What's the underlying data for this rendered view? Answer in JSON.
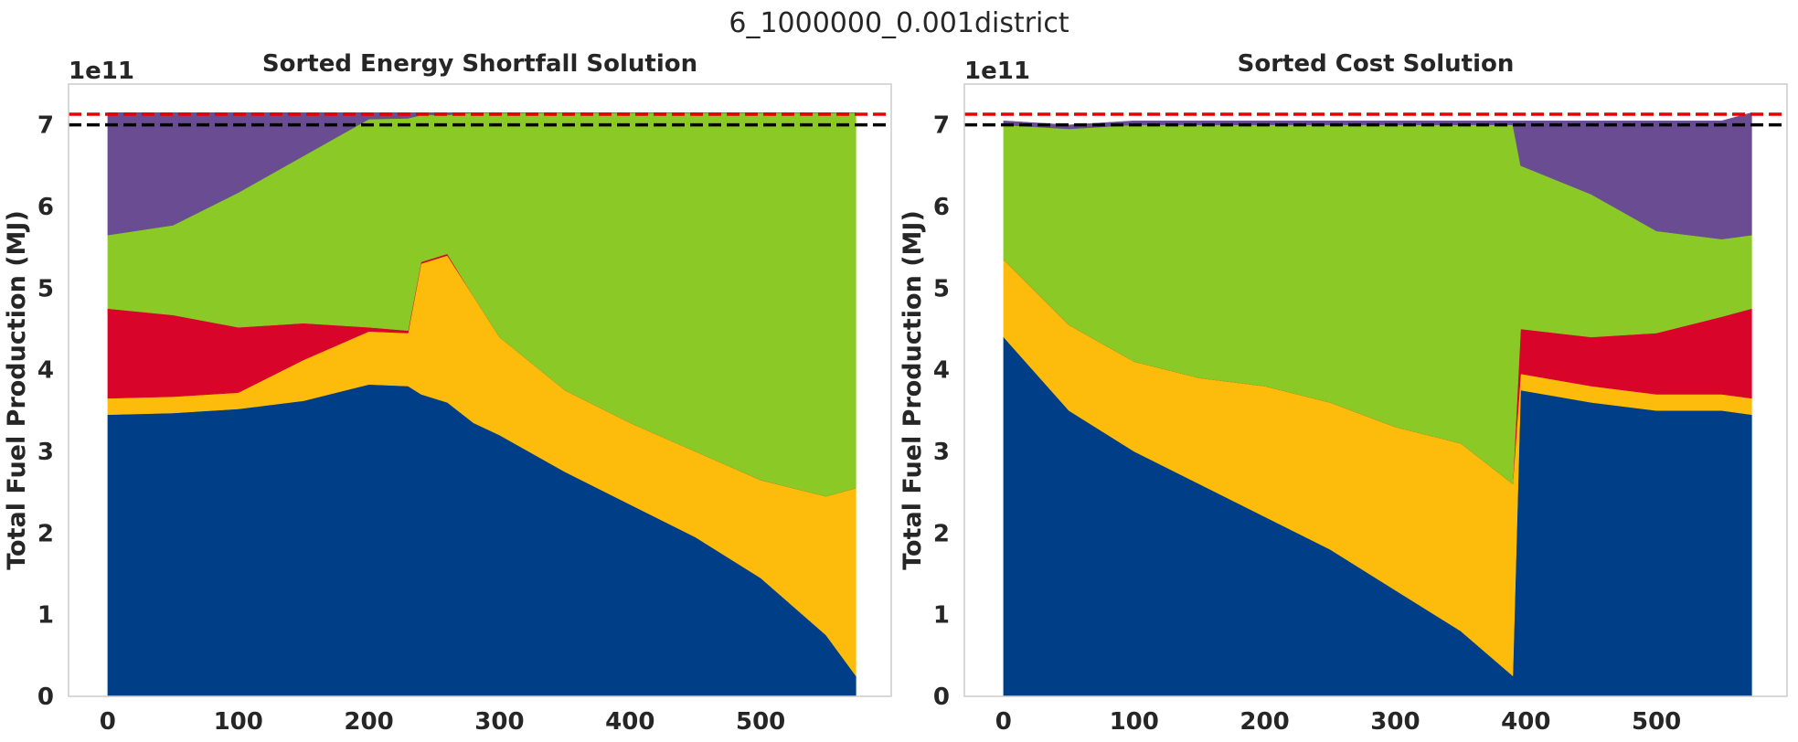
{
  "figure": {
    "suptitle": "6_1000000_0.001district"
  },
  "colors": {
    "navy": "#003f88",
    "gold": "#fdbc0c",
    "crimson": "#d90429",
    "green": "#8ac926",
    "purple": "#6a4c93",
    "ref_red": "#e60000",
    "ref_black": "#000000"
  },
  "chart_data": [
    {
      "type": "area",
      "title": "Sorted Energy Shortfall Solution",
      "ylabel": "Total Fuel Production (MJ)",
      "y_offset_text": "1e11",
      "xlim": [
        -30,
        600
      ],
      "ylim": [
        0,
        7.5
      ],
      "y_unit_scale": "1e11",
      "xticks": [
        "0",
        "100",
        "200",
        "300",
        "400",
        "500"
      ],
      "yticks": [
        "0",
        "1",
        "2",
        "3",
        "4",
        "5",
        "6",
        "7"
      ],
      "stacked": true,
      "x": [
        0,
        50,
        100,
        150,
        200,
        230,
        240,
        260,
        280,
        300,
        350,
        400,
        450,
        500,
        550,
        573
      ],
      "series": [
        {
          "color": "#003f88",
          "values": [
            3.45,
            3.47,
            3.52,
            3.62,
            3.82,
            3.8,
            3.7,
            3.6,
            3.35,
            3.2,
            2.75,
            2.35,
            1.95,
            1.45,
            0.75,
            0.25
          ]
        },
        {
          "color": "#fdbc0c",
          "values": [
            0.2,
            0.2,
            0.2,
            0.5,
            0.65,
            0.65,
            1.6,
            1.8,
            1.55,
            1.2,
            1.0,
            1.0,
            1.05,
            1.2,
            1.7,
            2.3
          ]
        },
        {
          "color": "#d90429",
          "values": [
            1.1,
            1.0,
            0.8,
            0.45,
            0.05,
            0.03,
            0.02,
            0.02,
            0.0,
            0.0,
            0.0,
            0.0,
            0.0,
            0.0,
            0.0,
            0.0
          ]
        },
        {
          "color": "#8ac926",
          "values": [
            0.9,
            1.1,
            1.65,
            2.05,
            2.55,
            2.6,
            1.8,
            1.7,
            2.25,
            2.75,
            3.4,
            3.8,
            4.15,
            4.5,
            4.7,
            4.6
          ]
        },
        {
          "color": "#6a4c93",
          "values": [
            1.5,
            1.38,
            0.98,
            0.53,
            0.08,
            0.07,
            0.03,
            0.03,
            0.0,
            0.0,
            0.0,
            0.0,
            0.0,
            0.0,
            0.0,
            0.0
          ]
        }
      ],
      "reference_lines": [
        {
          "y": 7.13,
          "color": "#e60000",
          "style": "dashed"
        },
        {
          "y": 7.0,
          "color": "#000000",
          "style": "dashed"
        }
      ]
    },
    {
      "type": "area",
      "title": "Sorted Cost Solution",
      "ylabel": "Total Fuel Production (MJ)",
      "y_offset_text": "1e11",
      "xlim": [
        -30,
        600
      ],
      "ylim": [
        0,
        7.5
      ],
      "y_unit_scale": "1e11",
      "xticks": [
        "0",
        "100",
        "200",
        "300",
        "400",
        "500"
      ],
      "yticks": [
        "0",
        "1",
        "2",
        "3",
        "4",
        "5",
        "6",
        "7"
      ],
      "stacked": true,
      "x": [
        0,
        50,
        100,
        150,
        200,
        250,
        300,
        350,
        390,
        396,
        450,
        500,
        550,
        573
      ],
      "series": [
        {
          "color": "#003f88",
          "values": [
            4.4,
            3.5,
            3.0,
            2.6,
            2.2,
            1.8,
            1.3,
            0.8,
            0.25,
            3.75,
            3.6,
            3.5,
            3.5,
            3.45
          ]
        },
        {
          "color": "#fdbc0c",
          "values": [
            0.95,
            1.05,
            1.1,
            1.3,
            1.6,
            1.8,
            2.0,
            2.3,
            2.35,
            0.2,
            0.2,
            0.2,
            0.2,
            0.2
          ]
        },
        {
          "color": "#d90429",
          "values": [
            0.0,
            0.0,
            0.0,
            0.0,
            0.0,
            0.0,
            0.0,
            0.0,
            0.0,
            0.55,
            0.6,
            0.75,
            0.95,
            1.1
          ]
        },
        {
          "color": "#8ac926",
          "values": [
            1.65,
            2.4,
            2.9,
            3.1,
            3.2,
            3.4,
            3.7,
            3.9,
            4.4,
            2.0,
            1.75,
            1.25,
            0.95,
            0.9
          ]
        },
        {
          "color": "#6a4c93",
          "values": [
            0.05,
            0.05,
            0.05,
            0.05,
            0.05,
            0.05,
            0.05,
            0.05,
            0.05,
            0.55,
            0.9,
            1.35,
            1.45,
            1.5
          ]
        }
      ],
      "reference_lines": [
        {
          "y": 7.13,
          "color": "#e60000",
          "style": "dashed"
        },
        {
          "y": 7.0,
          "color": "#000000",
          "style": "dashed"
        }
      ]
    }
  ]
}
